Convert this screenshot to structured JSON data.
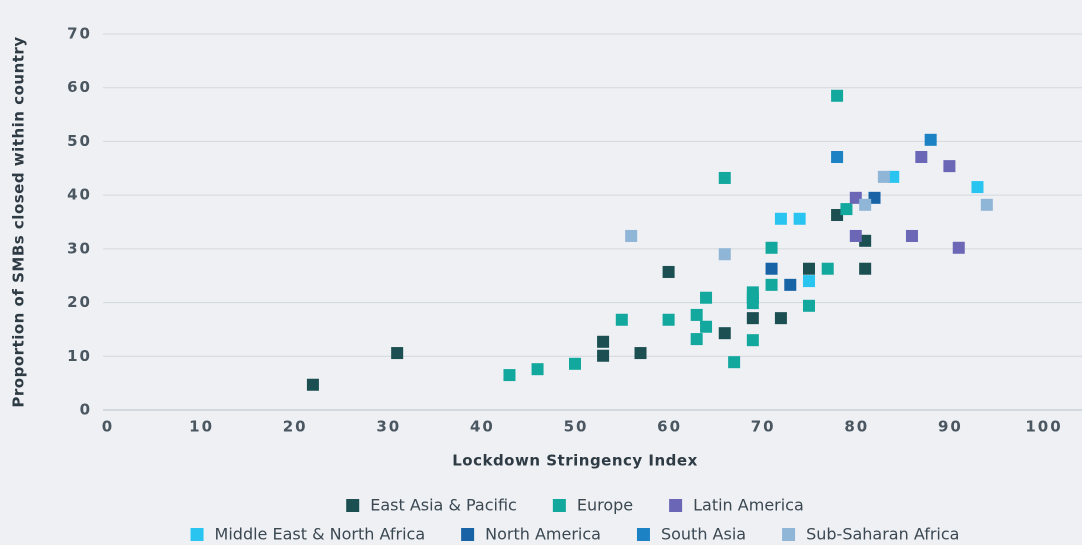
{
  "chart_data": {
    "type": "scatter",
    "x_label": "Lockdown Stringency Index",
    "y_label": "Proportion of SMBs closed within country",
    "xlim": [
      0,
      100
    ],
    "xticks": [
      0,
      10,
      20,
      30,
      40,
      50,
      60,
      70,
      80,
      90,
      100
    ],
    "ylim": [
      0,
      70
    ],
    "yticks": [
      0,
      10,
      20,
      30,
      40,
      50,
      60,
      70
    ],
    "grid": true,
    "legend": "bottom",
    "series": [
      {
        "name": "East Asia & Pacific",
        "color": "#1b4f51",
        "x": [
          22,
          31,
          53,
          53,
          57,
          60,
          66,
          69,
          72,
          75,
          78,
          81,
          81
        ],
        "values": [
          4.7,
          10.6,
          12.7,
          10.1,
          10.6,
          25.7,
          14.3,
          17.1,
          17.1,
          26.3,
          36.3,
          31.5,
          26.3
        ]
      },
      {
        "name": "Europe",
        "color": "#13a89e",
        "x": [
          43,
          46,
          50,
          55,
          60,
          63,
          63,
          64,
          64,
          66,
          67,
          69,
          69,
          69,
          69,
          71,
          71,
          75,
          77,
          78,
          79
        ],
        "values": [
          6.5,
          7.6,
          8.6,
          16.8,
          16.8,
          13.2,
          17.7,
          15.5,
          20.9,
          43.2,
          8.9,
          13.0,
          19.9,
          20.9,
          21.9,
          30.2,
          23.3,
          19.4,
          26.3,
          58.5,
          37.4
        ]
      },
      {
        "name": "Latin America",
        "color": "#6b66b6",
        "x": [
          80,
          80,
          86,
          87,
          90,
          91
        ],
        "values": [
          39.5,
          32.4,
          32.4,
          47.1,
          45.4,
          30.2
        ]
      },
      {
        "name": "Middle East & North Africa",
        "color": "#2ac4f0",
        "x": [
          72,
          74,
          75,
          84,
          93
        ],
        "values": [
          35.6,
          35.6,
          24.0,
          43.4,
          41.5
        ]
      },
      {
        "name": "North America",
        "color": "#1763a6",
        "x": [
          71,
          73,
          82
        ],
        "values": [
          26.3,
          23.3,
          39.5
        ]
      },
      {
        "name": "South Asia",
        "color": "#1d82c4",
        "x": [
          78,
          88
        ],
        "values": [
          47.1,
          50.3
        ]
      },
      {
        "name": "Sub-Saharan Africa",
        "color": "#8fb5d7",
        "x": [
          56,
          66,
          81,
          83,
          94
        ],
        "values": [
          32.4,
          29.0,
          38.2,
          43.4,
          38.2
        ]
      }
    ]
  }
}
